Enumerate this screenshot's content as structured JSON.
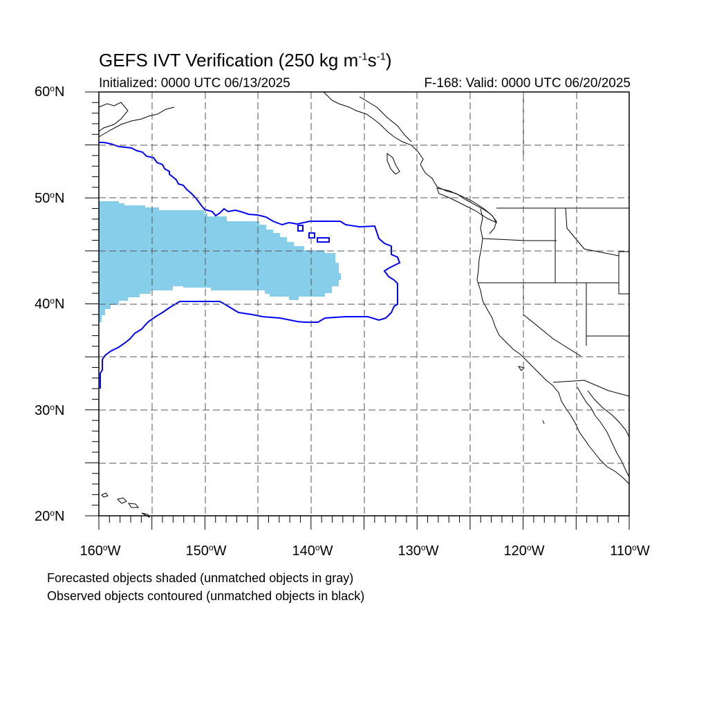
{
  "header": {
    "title_main": "GEFS IVT Verification (250 kg m",
    "title_exp1": "-1",
    "title_mid": "s",
    "title_exp2": "-1",
    "title_end": ")",
    "initialized": "Initialized: 0000 UTC 06/13/2025",
    "valid": "F-168: Valid: 0000 UTC 06/20/2025"
  },
  "axes": {
    "lat_labels": [
      {
        "num": "60",
        "hem": "N"
      },
      {
        "num": "50",
        "hem": "N"
      },
      {
        "num": "40",
        "hem": "N"
      },
      {
        "num": "30",
        "hem": "N"
      },
      {
        "num": "20",
        "hem": "N"
      }
    ],
    "lon_labels": [
      {
        "num": "160",
        "hem": "W"
      },
      {
        "num": "150",
        "hem": "W"
      },
      {
        "num": "140",
        "hem": "W"
      },
      {
        "num": "130",
        "hem": "W"
      },
      {
        "num": "120",
        "hem": "W"
      },
      {
        "num": "110",
        "hem": "W"
      }
    ],
    "lon_range": [
      -160,
      -110
    ],
    "lat_range": [
      20,
      60
    ]
  },
  "legend": {
    "line1": "Forecasted objects shaded (unmatched objects in gray)",
    "line2": "Observed objects contoured (unmatched objects in black)"
  },
  "colors": {
    "forecast_fill": "#87ceeb",
    "observed_contour": "#0000ff",
    "coastline": "#000000",
    "grid": "#555555"
  }
}
